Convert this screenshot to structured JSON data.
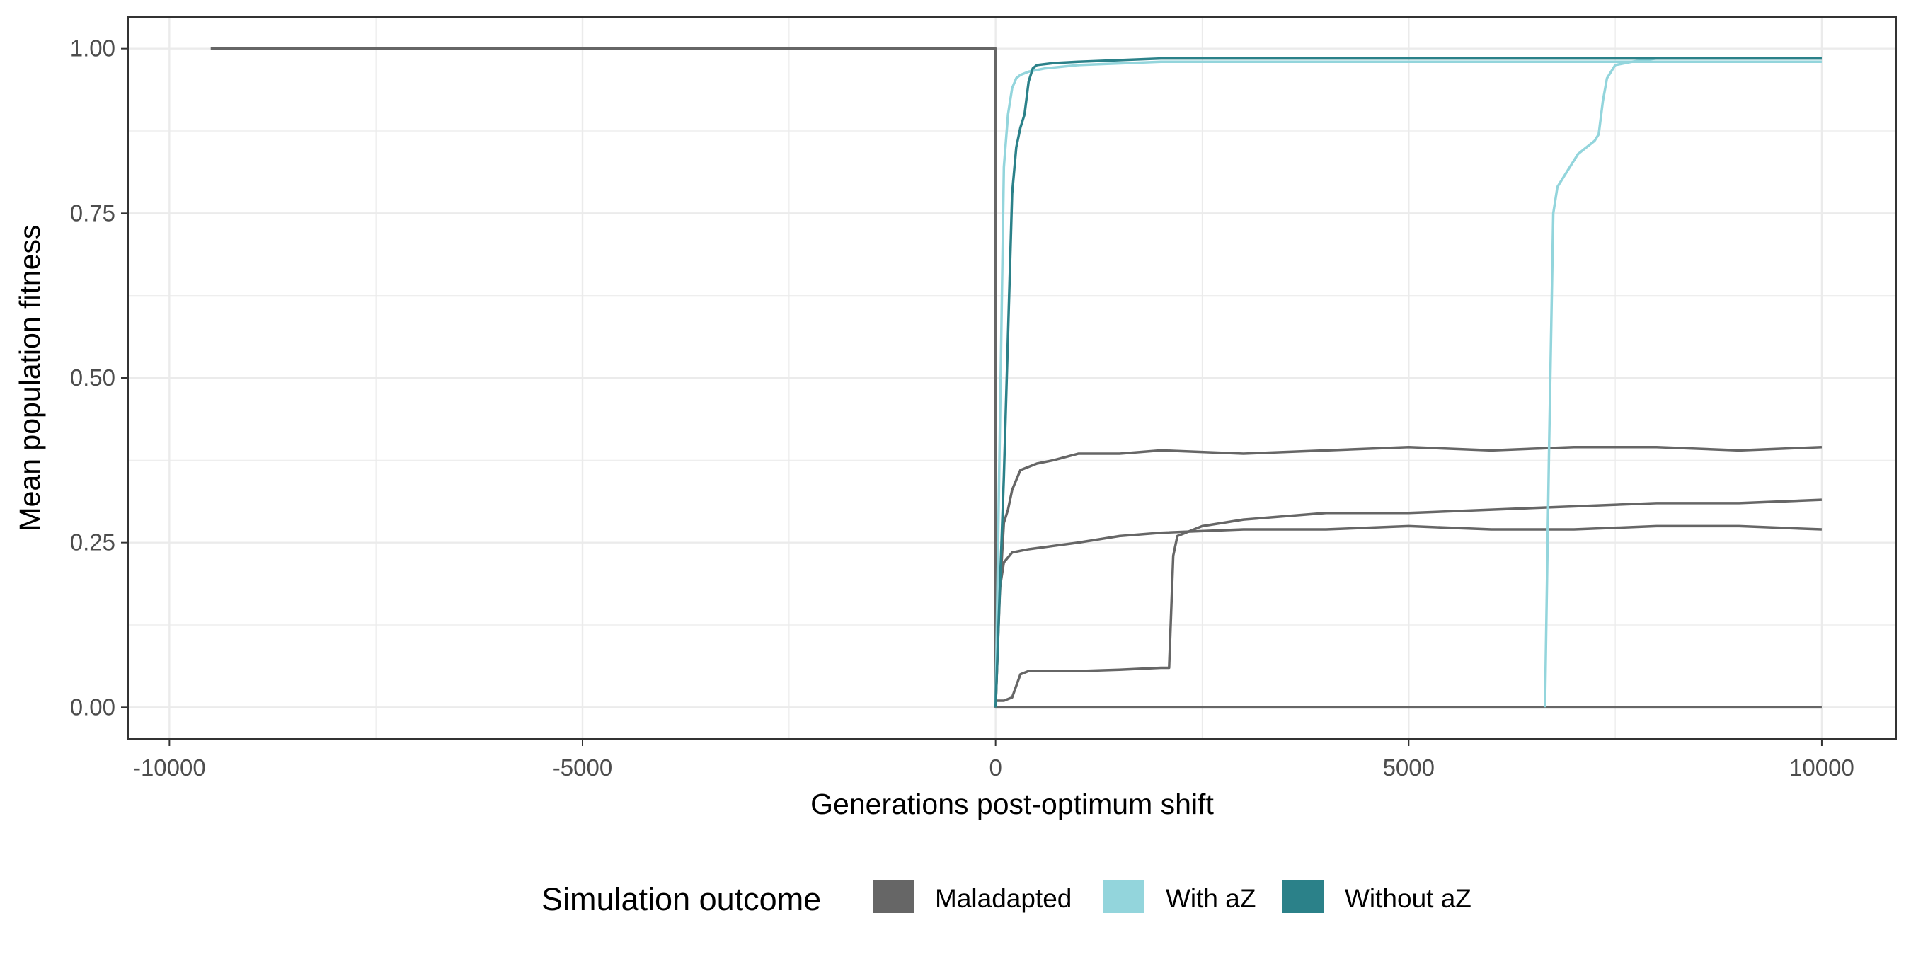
{
  "chart_data": {
    "type": "line",
    "title": "",
    "xlabel": "Generations post-optimum shift",
    "ylabel": "Mean population fitness",
    "xlim": [
      -10500,
      10900
    ],
    "ylim": [
      -0.048,
      1.048
    ],
    "x_ticks": [
      -10000,
      -5000,
      0,
      5000,
      10000
    ],
    "x_tick_labels": [
      "-10000",
      "-5000",
      "0",
      "5000",
      "10000"
    ],
    "y_ticks": [
      0,
      0.25,
      0.5,
      0.75,
      1.0
    ],
    "y_tick_labels": [
      "0.00",
      "0.25",
      "0.50",
      "0.75",
      "1.00"
    ],
    "grid": true,
    "legend": {
      "title": "Simulation outcome",
      "position": "bottom",
      "entries": [
        {
          "label": "Maladapted",
          "color": "#666666"
        },
        {
          "label": "With aZ",
          "color": "#93d5dc"
        },
        {
          "label": "Without aZ",
          "color": "#2b8189"
        }
      ]
    },
    "series": [
      {
        "outcome": "Maladapted",
        "color": "#666666",
        "x": [
          -9500,
          0,
          0,
          10000
        ],
        "y": [
          1.0,
          1.0,
          0.0,
          0.0
        ]
      },
      {
        "outcome": "Maladapted",
        "color": "#666666",
        "x": [
          0,
          50,
          100,
          150,
          200,
          300,
          400,
          500,
          700,
          1000,
          1500,
          2000,
          3000,
          4000,
          5000,
          6000,
          7000,
          8000,
          9000,
          10000
        ],
        "y": [
          0.0,
          0.17,
          0.28,
          0.3,
          0.33,
          0.36,
          0.365,
          0.37,
          0.375,
          0.385,
          0.385,
          0.39,
          0.385,
          0.39,
          0.395,
          0.39,
          0.395,
          0.395,
          0.39,
          0.395
        ]
      },
      {
        "outcome": "Maladapted",
        "color": "#666666",
        "x": [
          0,
          50,
          100,
          200,
          400,
          700,
          1000,
          1500,
          2000,
          3000,
          4000,
          5000,
          6000,
          7000,
          8000,
          9000,
          10000
        ],
        "y": [
          0.0,
          0.18,
          0.22,
          0.235,
          0.24,
          0.245,
          0.25,
          0.26,
          0.265,
          0.27,
          0.27,
          0.275,
          0.27,
          0.27,
          0.275,
          0.275,
          0.27
        ]
      },
      {
        "outcome": "Maladapted",
        "color": "#666666",
        "x": [
          0,
          100,
          200,
          300,
          400,
          600,
          1000,
          1500,
          2000,
          2100,
          2150,
          2200,
          2300,
          2500,
          3000,
          4000,
          5000,
          6000,
          7000,
          8000,
          9000,
          10000
        ],
        "y": [
          0.01,
          0.01,
          0.015,
          0.05,
          0.055,
          0.055,
          0.055,
          0.057,
          0.06,
          0.06,
          0.23,
          0.26,
          0.265,
          0.275,
          0.285,
          0.295,
          0.295,
          0.3,
          0.305,
          0.31,
          0.31,
          0.315
        ]
      },
      {
        "outcome": "With aZ",
        "color": "#93d5dc",
        "x": [
          0,
          100,
          150,
          200,
          250,
          300,
          400,
          600,
          1000,
          2000,
          3000,
          4000,
          5000,
          6000,
          7000,
          8000,
          9000,
          10000
        ],
        "y": [
          0.0,
          0.82,
          0.9,
          0.94,
          0.955,
          0.96,
          0.965,
          0.97,
          0.975,
          0.98,
          0.98,
          0.98,
          0.98,
          0.98,
          0.98,
          0.98,
          0.98,
          0.98
        ]
      },
      {
        "outcome": "With aZ",
        "color": "#93d5dc",
        "x": [
          6650,
          6700,
          6750,
          6800,
          6850,
          6950,
          7050,
          7150,
          7250,
          7300,
          7350,
          7400,
          7500,
          7700,
          8000,
          9000,
          10000
        ],
        "y": [
          0.0,
          0.4,
          0.75,
          0.79,
          0.8,
          0.82,
          0.84,
          0.85,
          0.86,
          0.87,
          0.92,
          0.955,
          0.975,
          0.98,
          0.985,
          0.985,
          0.985
        ]
      },
      {
        "outcome": "Without aZ",
        "color": "#2b8189",
        "x": [
          0,
          100,
          200,
          250,
          300,
          350,
          400,
          450,
          500,
          700,
          1000,
          2000,
          3000,
          4000,
          5000,
          6000,
          7000,
          8000,
          9000,
          10000
        ],
        "y": [
          0.0,
          0.35,
          0.78,
          0.85,
          0.88,
          0.9,
          0.95,
          0.97,
          0.975,
          0.978,
          0.98,
          0.985,
          0.985,
          0.985,
          0.985,
          0.985,
          0.985,
          0.985,
          0.985,
          0.985
        ]
      }
    ]
  }
}
